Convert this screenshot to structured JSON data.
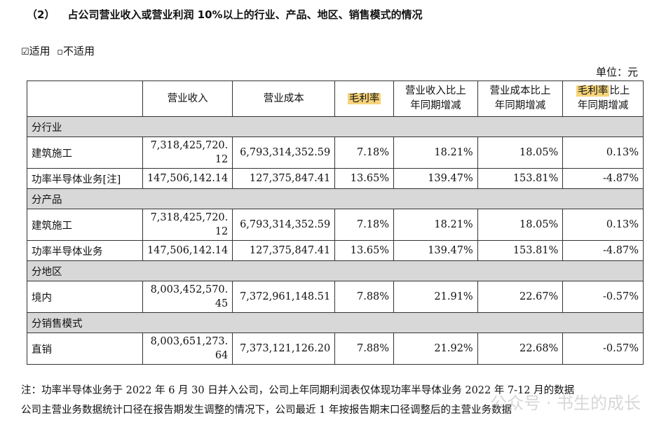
{
  "heading": {
    "number": "（2）",
    "text": "占公司营业收入或营业利润 10%以上的行业、产品、地区、销售模式的情况"
  },
  "options": {
    "checked_box": "☑",
    "checked_label": "适用",
    "unchecked_box": "▫",
    "unchecked_label": "不适用"
  },
  "unit": "单位：元",
  "table": {
    "headers": [
      "",
      "营业收入",
      "营业成本",
      "毛利率",
      "营业收入比上年同期增减",
      "营业成本比上年同期增减",
      "毛利率比上年同期增减"
    ],
    "header_parts": {
      "col4": {
        "line1": "营业收入比上",
        "line2": "年同期增减"
      },
      "col5": {
        "line1": "营业成本比上",
        "line2": "年同期增减"
      },
      "col6": {
        "hl": "毛利率",
        "rest": "比上",
        "line2": "年同期增减"
      }
    },
    "sections": [
      {
        "title": "分行业",
        "rows": [
          {
            "name": "建筑施工",
            "revenue_a": "7,318,425,720.",
            "revenue_b": "12",
            "cost": "6,793,314,352.59",
            "margin": "7.18%",
            "rev_chg": "18.21%",
            "cost_chg": "18.05%",
            "margin_chg": "0.13%"
          },
          {
            "name": "功率半导体业务[注]",
            "revenue_a": "147,506,142.14",
            "revenue_b": "",
            "cost": "127,375,847.41",
            "margin": "13.65%",
            "rev_chg": "139.47%",
            "cost_chg": "153.81%",
            "margin_chg": "-4.87%"
          }
        ]
      },
      {
        "title": "分产品",
        "rows": [
          {
            "name": "建筑施工",
            "revenue_a": "7,318,425,720.",
            "revenue_b": "12",
            "cost": "6,793,314,352.59",
            "margin": "7.18%",
            "rev_chg": "18.21%",
            "cost_chg": "18.05%",
            "margin_chg": "0.13%"
          },
          {
            "name": "功率半导体业务",
            "revenue_a": "147,506,142.14",
            "revenue_b": "",
            "cost": "127,375,847.41",
            "margin": "13.65%",
            "rev_chg": "139.47%",
            "cost_chg": "153.81%",
            "margin_chg": "-4.87%"
          }
        ]
      },
      {
        "title": "分地区",
        "rows": [
          {
            "name": "境内",
            "revenue_a": "8,003,452,570.",
            "revenue_b": "45",
            "cost": "7,372,961,148.51",
            "margin": "7.88%",
            "rev_chg": "21.91%",
            "cost_chg": "22.67%",
            "margin_chg": "-0.57%"
          }
        ]
      },
      {
        "title": "分销售模式",
        "rows": [
          {
            "name": "直销",
            "revenue_a": "8,003,651,273.",
            "revenue_b": "64",
            "cost": "7,373,121,126.20",
            "margin": "7.88%",
            "rev_chg": "21.92%",
            "cost_chg": "22.68%",
            "margin_chg": "-0.57%"
          }
        ]
      }
    ]
  },
  "notes": [
    "注：功率半导体业务于 2022 年 6 月 30 日并入公司，公司上年同期利润表仅体现功率半导体业务 2022 年 7-12 月的数据",
    "公司主营业务数据统计口径在报告期发生调整的情况下，公司最近 1 年按报告期末口径调整后的主营业务数据"
  ],
  "watermark": "公众号 · 书生的成长"
}
